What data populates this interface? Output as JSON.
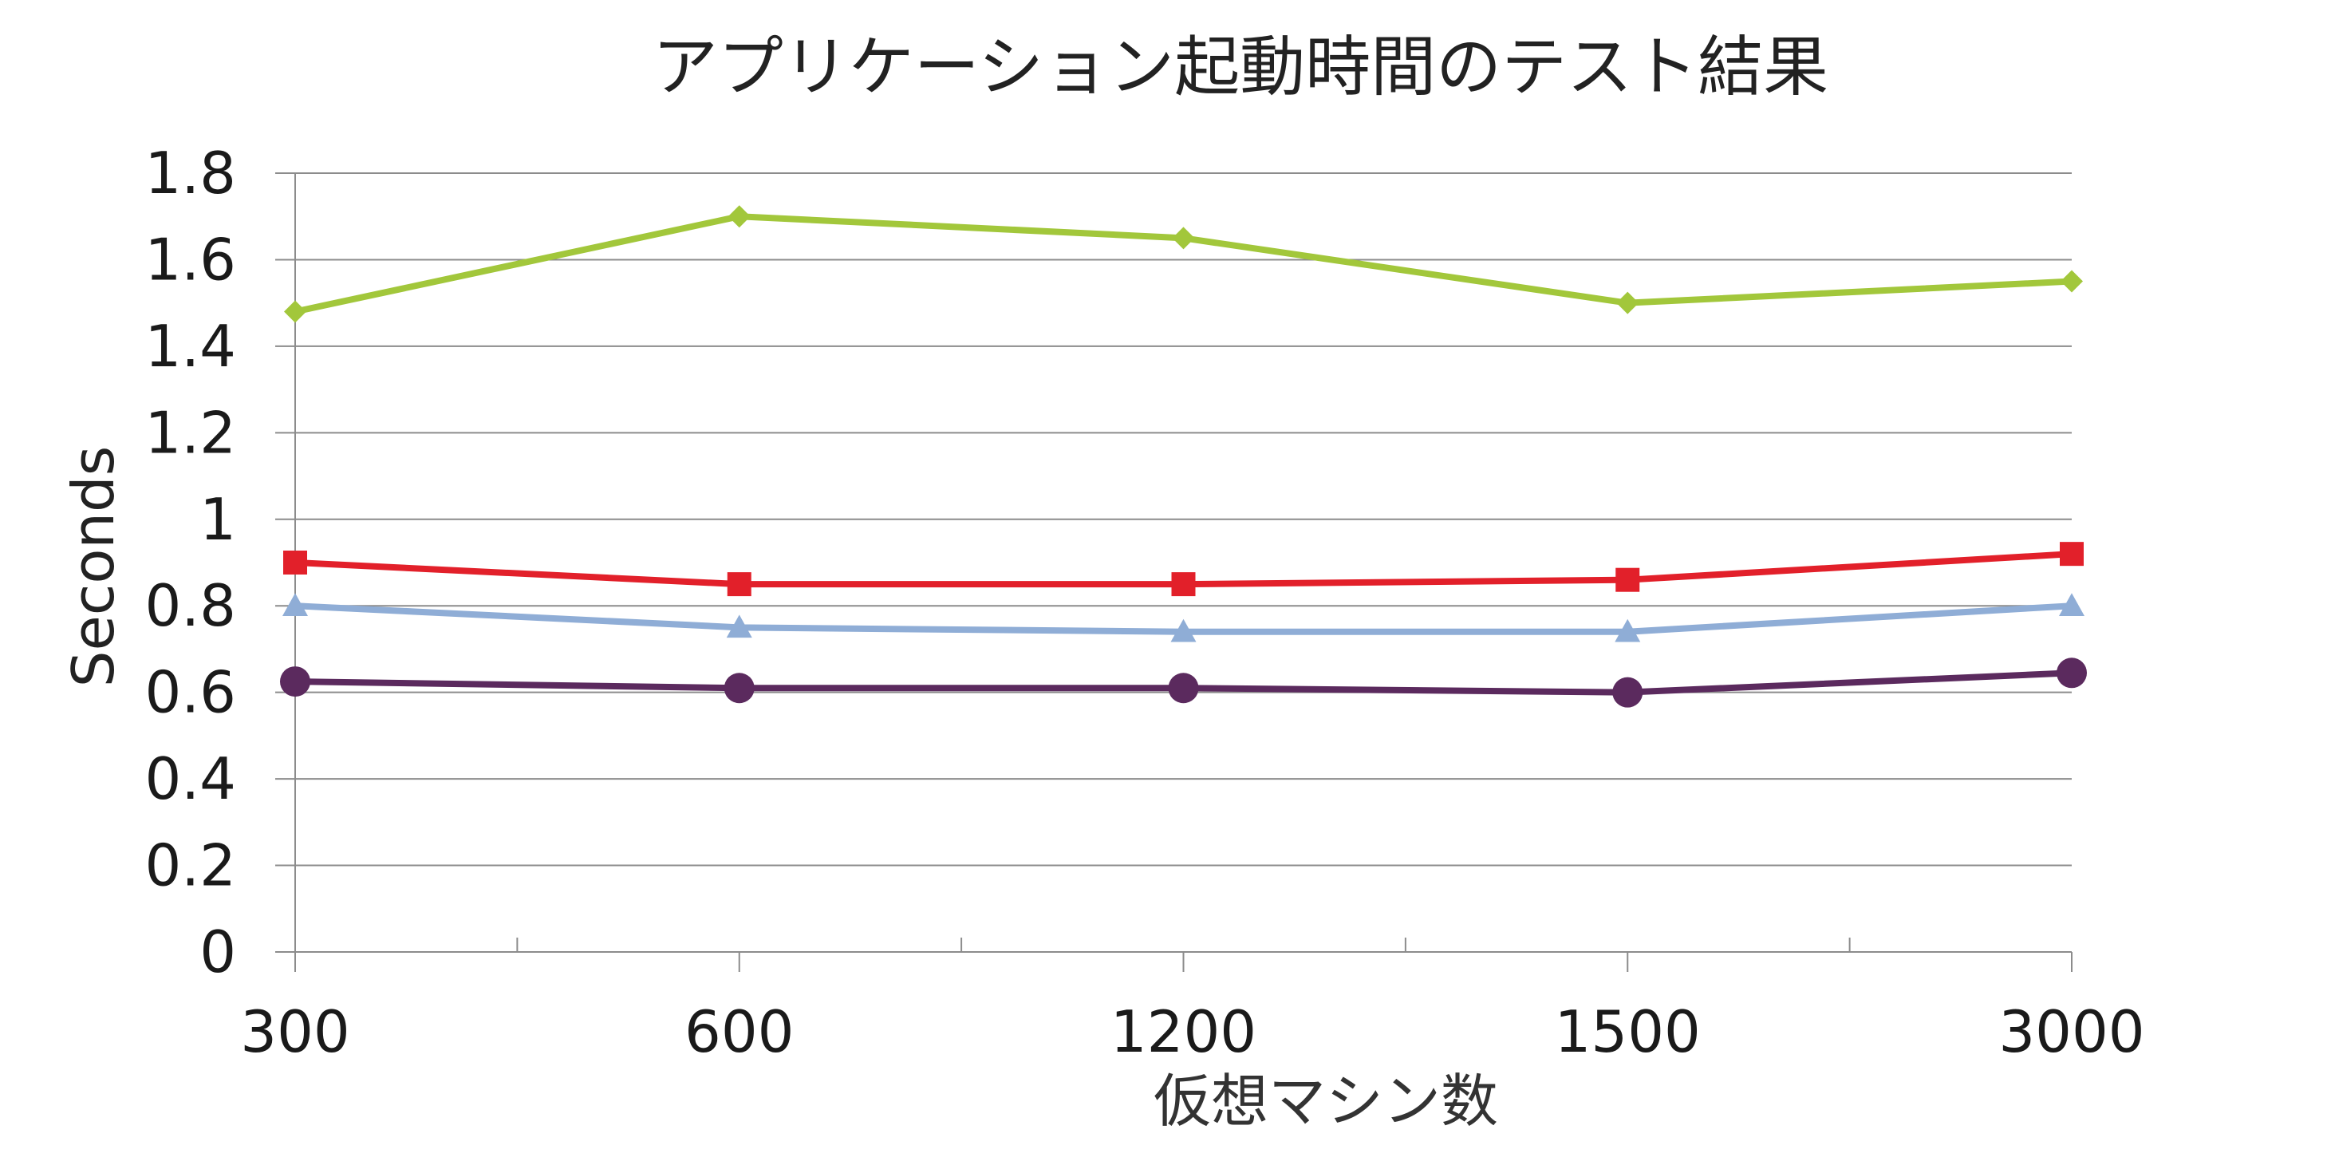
{
  "chart_data": {
    "type": "line",
    "title": "アプリケーション起動時間のテスト結果",
    "xlabel": "仮想マシン数",
    "ylabel": "Seconds",
    "categories": [
      "300",
      "600",
      "1200",
      "1500",
      "3000"
    ],
    "ylim": [
      0,
      1.8
    ],
    "yticks": [
      "0",
      "0.2",
      "0.4",
      "0.6",
      "0.8",
      "1",
      "1.2",
      "1.4",
      "1.6",
      "1.8"
    ],
    "grid": true,
    "series": [
      {
        "color": "#a2c73b",
        "marker": "diamond",
        "values": [
          1.48,
          1.7,
          1.65,
          1.5,
          1.55
        ]
      },
      {
        "color": "#e2202a",
        "marker": "square",
        "values": [
          0.9,
          0.85,
          0.85,
          0.86,
          0.92
        ]
      },
      {
        "color": "#8fadd6",
        "marker": "triangle",
        "values": [
          0.8,
          0.75,
          0.74,
          0.74,
          0.8
        ]
      },
      {
        "color": "#5b2a5e",
        "marker": "circle",
        "values": [
          0.625,
          0.61,
          0.61,
          0.6,
          0.645
        ]
      }
    ]
  }
}
